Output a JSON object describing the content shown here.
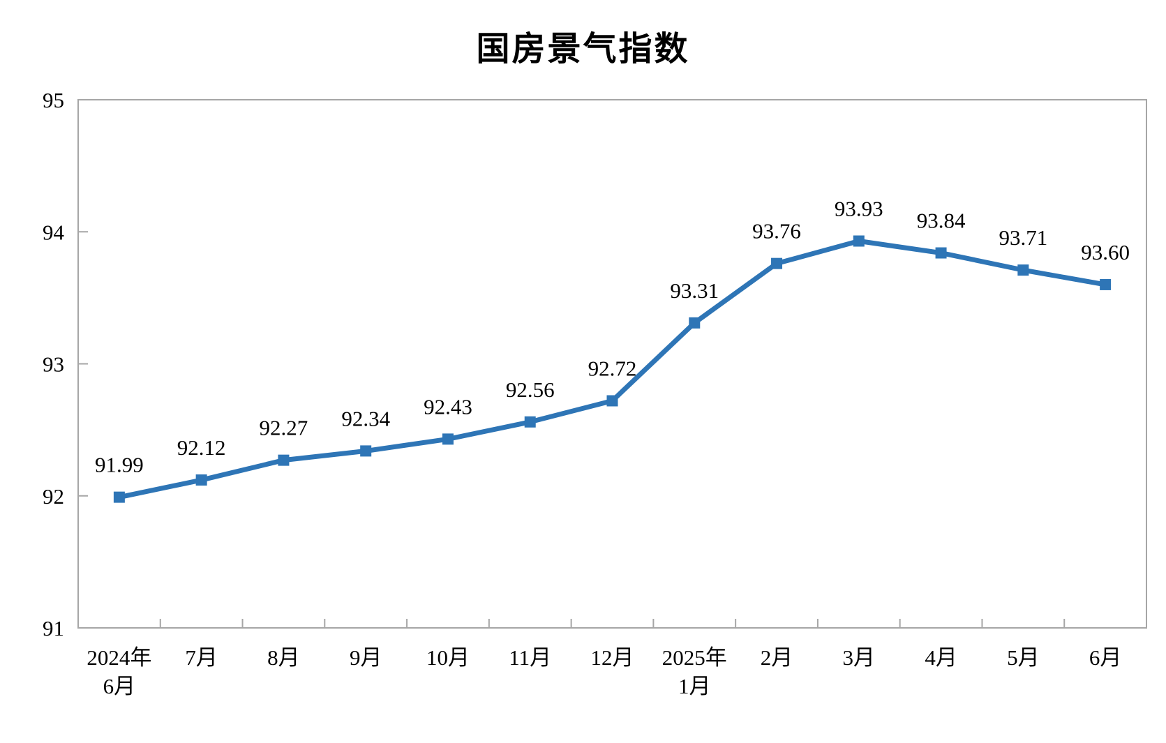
{
  "chart_data": {
    "type": "line",
    "title": "国房景气指数",
    "categories": [
      "2024年\n6月",
      "7月",
      "8月",
      "9月",
      "10月",
      "11月",
      "12月",
      "2025年\n1月",
      "2月",
      "3月",
      "4月",
      "5月",
      "6月"
    ],
    "values": [
      91.99,
      92.12,
      92.27,
      92.34,
      92.43,
      92.56,
      92.72,
      93.31,
      93.76,
      93.93,
      93.84,
      93.71,
      93.6
    ],
    "value_labels": [
      "91.99",
      "92.12",
      "92.27",
      "92.34",
      "92.43",
      "92.56",
      "92.72",
      "93.31",
      "93.76",
      "93.93",
      "93.84",
      "93.71",
      "93.60"
    ],
    "xlabel": "",
    "ylabel": "",
    "ylim": [
      91,
      95
    ],
    "yticks": [
      91,
      92,
      93,
      94,
      95
    ],
    "ytick_labels": [
      "91",
      "92",
      "93",
      "94",
      "95"
    ],
    "grid": false,
    "legend": "none",
    "line_color": "#2E75B6",
    "marker": "square",
    "label_color": "#000000",
    "axis_color": "#A6A6A6",
    "background_color": "#FFFFFF"
  }
}
